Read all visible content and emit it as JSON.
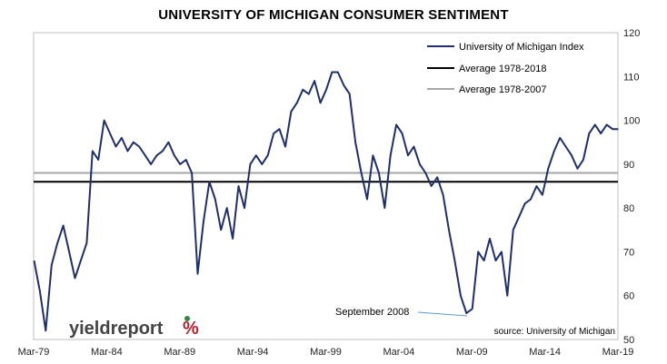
{
  "chart_data": {
    "type": "line",
    "title": "UNIVERSITY OF MICHIGAN CONSUMER SENTIMENT",
    "x_ticks": [
      "Mar-79",
      "Mar-84",
      "Mar-89",
      "Mar-94",
      "Mar-99",
      "Mar-04",
      "Mar-09",
      "Mar-14",
      "Mar-19"
    ],
    "x_tick_years": [
      1979.17,
      1984.17,
      1989.17,
      1994.17,
      1999.17,
      2004.17,
      2009.17,
      2014.17,
      2019.17
    ],
    "xlim": [
      1979.17,
      2019.17
    ],
    "ylim": [
      50,
      120
    ],
    "y_ticks": [
      50,
      60,
      70,
      80,
      90,
      100,
      110,
      120
    ],
    "y_axis_side": "right",
    "grid": false,
    "legend_position": "top-right",
    "series": [
      {
        "name": "University of Michigan Index",
        "color": "#1f2f6b",
        "x": [
          1979.2,
          1979.6,
          1980.0,
          1980.4,
          1980.8,
          1981.2,
          1981.6,
          1982.0,
          1982.4,
          1982.8,
          1983.2,
          1983.6,
          1984.0,
          1984.4,
          1984.8,
          1985.2,
          1985.6,
          1986.0,
          1986.4,
          1986.8,
          1987.2,
          1987.6,
          1988.0,
          1988.4,
          1988.8,
          1989.2,
          1989.6,
          1990.0,
          1990.4,
          1990.8,
          1991.2,
          1991.6,
          1992.0,
          1992.4,
          1992.8,
          1993.2,
          1993.6,
          1994.0,
          1994.4,
          1994.8,
          1995.2,
          1995.6,
          1996.0,
          1996.4,
          1996.8,
          1997.2,
          1997.6,
          1998.0,
          1998.4,
          1998.8,
          1999.2,
          1999.6,
          2000.0,
          2000.4,
          2000.8,
          2001.2,
          2001.6,
          2002.0,
          2002.4,
          2002.8,
          2003.2,
          2003.6,
          2004.0,
          2004.4,
          2004.8,
          2005.2,
          2005.6,
          2006.0,
          2006.4,
          2006.8,
          2007.2,
          2007.6,
          2008.0,
          2008.4,
          2008.8,
          2009.2,
          2009.6,
          2010.0,
          2010.4,
          2010.8,
          2011.2,
          2011.6,
          2012.0,
          2012.4,
          2012.8,
          2013.2,
          2013.6,
          2014.0,
          2014.4,
          2014.8,
          2015.2,
          2015.6,
          2016.0,
          2016.4,
          2016.8,
          2017.2,
          2017.6,
          2018.0,
          2018.4,
          2018.8,
          2019.2
        ],
        "values": [
          68,
          61,
          52,
          67,
          72,
          76,
          70,
          64,
          68,
          72,
          93,
          91,
          100,
          97,
          94,
          96,
          93,
          95,
          94,
          92,
          90,
          92,
          93,
          95,
          92,
          90,
          91,
          88,
          65,
          77,
          86,
          82,
          75,
          80,
          73,
          85,
          80,
          90,
          92,
          90,
          92,
          97,
          98,
          94,
          102,
          104,
          107,
          106,
          109,
          104,
          107,
          111,
          111,
          108,
          106,
          95,
          88,
          82,
          92,
          88,
          80,
          92,
          99,
          97,
          92,
          94,
          90,
          88,
          85,
          87,
          83,
          75,
          68,
          60,
          56,
          57,
          70,
          68,
          73,
          68,
          70,
          60,
          75,
          78,
          81,
          82,
          85,
          83,
          89,
          93,
          96,
          94,
          92,
          89,
          91,
          97,
          99,
          97,
          99,
          98,
          98
        ]
      },
      {
        "name": "Average 1978-2018",
        "color": "#000000",
        "x": [
          1979.17,
          2019.17
        ],
        "values": [
          86,
          86
        ]
      },
      {
        "name": "Average 1978-2007",
        "color": "#a6a6a6",
        "x": [
          1979.17,
          2019.17
        ],
        "values": [
          88,
          88
        ]
      }
    ],
    "annotations": [
      {
        "text": "September  2008",
        "x": 2008.7,
        "y": 56
      }
    ],
    "source": "source: University of Michigan",
    "logo": {
      "text": "yieldreport",
      "suffix": "%"
    }
  }
}
